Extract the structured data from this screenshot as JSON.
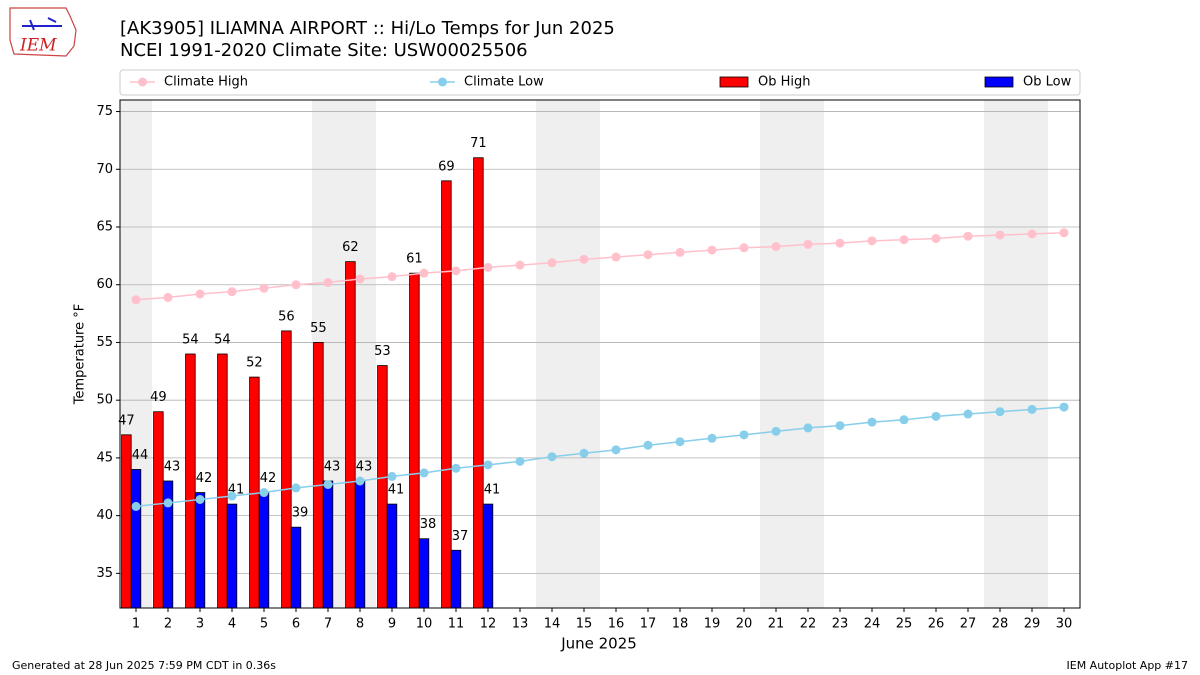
{
  "logo_text": "IEM",
  "footer_left": "Generated at 28 Jun 2025 7:59 PM CDT in 0.36s",
  "footer_right": "IEM Autoplot App #17",
  "chart_data": {
    "type": "bar_line",
    "title": "[AK3905] ILIAMNA AIRPORT :: Hi/Lo Temps for Jun 2025",
    "subtitle": "NCEI 1991-2020 Climate Site: USW00025506",
    "xlabel": "June 2025",
    "ylabel": "Temperature °F",
    "x": [
      1,
      2,
      3,
      4,
      5,
      6,
      7,
      8,
      9,
      10,
      11,
      12,
      13,
      14,
      15,
      16,
      17,
      18,
      19,
      20,
      21,
      22,
      23,
      24,
      25,
      26,
      27,
      28,
      29,
      30
    ],
    "xlim": [
      0.5,
      30.5
    ],
    "xticks": [
      1,
      2,
      3,
      4,
      5,
      6,
      7,
      8,
      9,
      10,
      11,
      12,
      13,
      14,
      15,
      16,
      17,
      18,
      19,
      20,
      21,
      22,
      23,
      24,
      25,
      26,
      27,
      28,
      29,
      30
    ],
    "ylim": [
      32,
      76
    ],
    "yticks": [
      35,
      40,
      45,
      50,
      55,
      60,
      65,
      70,
      75
    ],
    "grid": true,
    "shaded_days": [
      1,
      7,
      8,
      14,
      15,
      21,
      22,
      28,
      29
    ],
    "series": [
      {
        "name": "Climate High",
        "kind": "line",
        "color": "#ffc0cb",
        "values": [
          58.7,
          58.9,
          59.2,
          59.4,
          59.7,
          60.0,
          60.2,
          60.5,
          60.7,
          61.0,
          61.2,
          61.5,
          61.7,
          61.9,
          62.2,
          62.4,
          62.6,
          62.8,
          63.0,
          63.2,
          63.3,
          63.5,
          63.6,
          63.8,
          63.9,
          64.0,
          64.2,
          64.3,
          64.4,
          64.5
        ]
      },
      {
        "name": "Climate Low",
        "kind": "line",
        "color": "#87ceeb",
        "values": [
          40.8,
          41.1,
          41.4,
          41.7,
          42.0,
          42.4,
          42.7,
          43.0,
          43.4,
          43.7,
          44.1,
          44.4,
          44.7,
          45.1,
          45.4,
          45.7,
          46.1,
          46.4,
          46.7,
          47.0,
          47.3,
          47.6,
          47.8,
          48.1,
          48.3,
          48.6,
          48.8,
          49.0,
          49.2,
          49.4
        ]
      },
      {
        "name": "Ob High",
        "kind": "bar",
        "color": "#ff0000",
        "values": [
          47,
          49,
          54,
          54,
          52,
          56,
          55,
          62,
          53,
          61,
          69,
          71,
          null,
          null,
          null,
          null,
          null,
          null,
          null,
          null,
          null,
          null,
          null,
          null,
          null,
          null,
          null,
          null,
          null,
          null
        ]
      },
      {
        "name": "Ob Low",
        "kind": "bar",
        "color": "#0000ff",
        "values": [
          44,
          43,
          42,
          41,
          42,
          39,
          43,
          43,
          41,
          38,
          37,
          41,
          null,
          null,
          null,
          null,
          null,
          null,
          null,
          null,
          null,
          null,
          null,
          null,
          null,
          null,
          null,
          null,
          null,
          null
        ]
      }
    ]
  }
}
